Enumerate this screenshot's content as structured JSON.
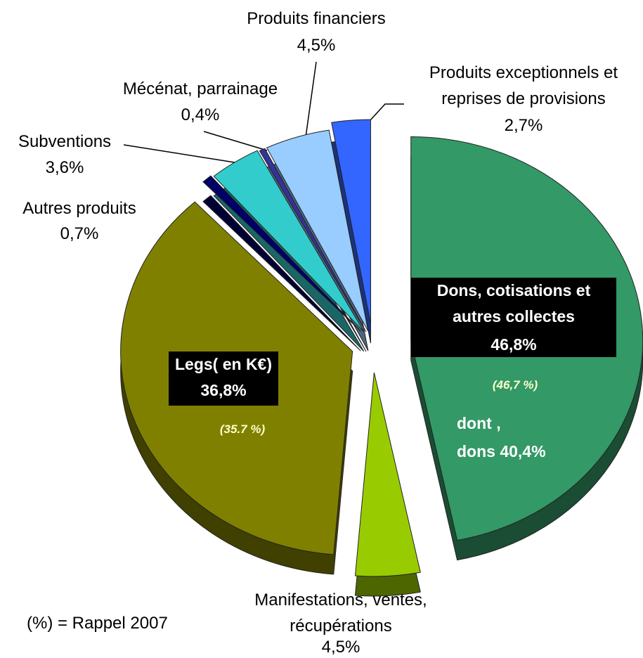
{
  "chart_data": {
    "type": "pie",
    "categories": [
      "Dons, cotisations et\nautres collectes",
      "Manifestations, ventes,\nrécupérations",
      "Legs( en K€)",
      "Autres produits",
      "Subventions",
      "Mécénat, parrainage",
      "Produits financiers",
      "Produits exceptionnels et\nreprises de provisions"
    ],
    "values": [
      46.8,
      4.5,
      36.8,
      0.7,
      3.6,
      0.4,
      4.5,
      2.7
    ],
    "value_labels": [
      "46,8%",
      "4,5%",
      "36,8%",
      "0,7%",
      "3,6%",
      "0,4%",
      "4,5%",
      "2,7%"
    ],
    "colors": [
      "#339966",
      "#99cc00",
      "#808000",
      "#000066",
      "#33cccc",
      "#333399",
      "#99ccff",
      "#3366ff"
    ],
    "annotations": [
      "(46,7 %)",
      "(35.7 %)",
      "dont ,\ndons 40,4%",
      "(%) = Rappel 2007"
    ]
  }
}
